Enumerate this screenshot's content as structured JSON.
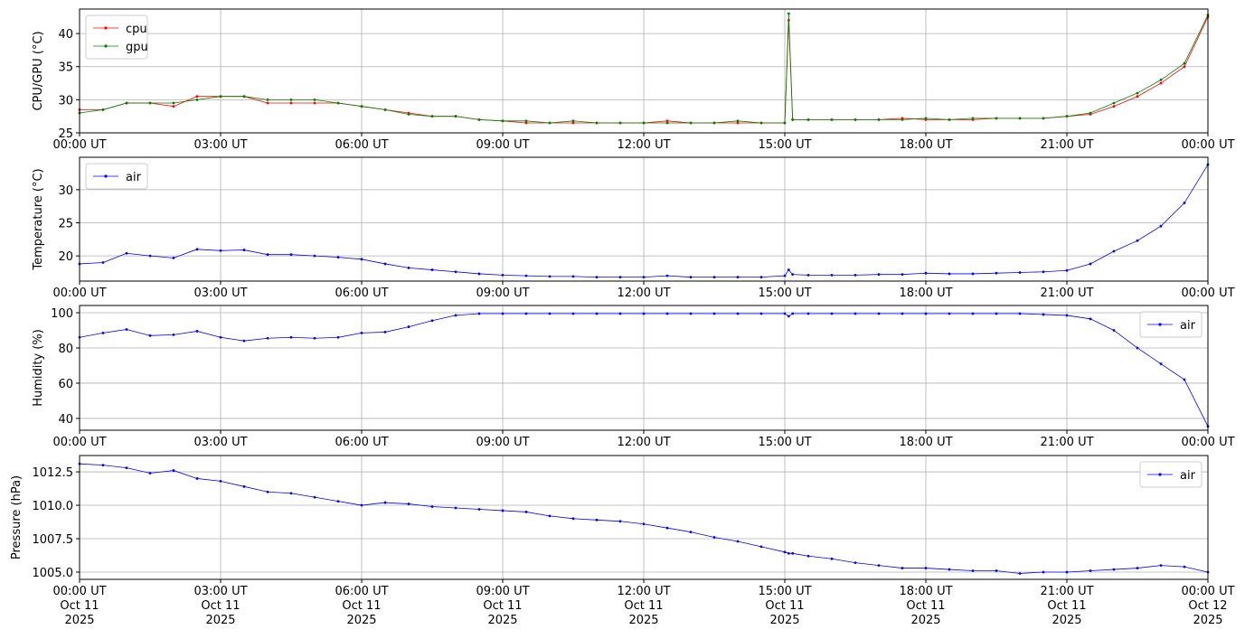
{
  "chart_data": [
    {
      "type": "line",
      "ylabel": "CPU/GPU (°C)",
      "grid": true,
      "legend": "upper left",
      "x": [
        "2025-10-11T00:00",
        "2025-10-11T00:30",
        "2025-10-11T01:00",
        "2025-10-11T01:30",
        "2025-10-11T02:00",
        "2025-10-11T02:30",
        "2025-10-11T03:00",
        "2025-10-11T03:30",
        "2025-10-11T04:00",
        "2025-10-11T04:30",
        "2025-10-11T05:00",
        "2025-10-11T05:30",
        "2025-10-11T06:00",
        "2025-10-11T06:30",
        "2025-10-11T07:00",
        "2025-10-11T07:30",
        "2025-10-11T08:00",
        "2025-10-11T08:30",
        "2025-10-11T09:00",
        "2025-10-11T09:30",
        "2025-10-11T10:00",
        "2025-10-11T10:30",
        "2025-10-11T11:00",
        "2025-10-11T11:30",
        "2025-10-11T12:00",
        "2025-10-11T12:30",
        "2025-10-11T13:00",
        "2025-10-11T13:30",
        "2025-10-11T14:00",
        "2025-10-11T14:30",
        "2025-10-11T15:00",
        "2025-10-11T15:05",
        "2025-10-11T15:10",
        "2025-10-11T15:30",
        "2025-10-11T16:00",
        "2025-10-11T16:30",
        "2025-10-11T17:00",
        "2025-10-11T17:30",
        "2025-10-11T18:00",
        "2025-10-11T18:30",
        "2025-10-11T19:00",
        "2025-10-11T19:30",
        "2025-10-11T20:00",
        "2025-10-11T20:30",
        "2025-10-11T21:00",
        "2025-10-11T21:30",
        "2025-10-11T22:00",
        "2025-10-11T22:30",
        "2025-10-11T23:00",
        "2025-10-11T23:30",
        "2025-10-12T00:00"
      ],
      "series": [
        {
          "name": "cpu",
          "color": "red",
          "values": [
            28.5,
            28.5,
            29.5,
            29.5,
            29,
            30.5,
            30.5,
            30.5,
            29.5,
            29.5,
            29.5,
            29.5,
            29,
            28.5,
            28,
            27.5,
            27.5,
            27,
            26.8,
            26.5,
            26.5,
            26.5,
            26.5,
            26.5,
            26.5,
            26.8,
            26.5,
            26.5,
            26.5,
            26.5,
            26.5,
            42,
            27,
            27,
            27,
            27,
            27,
            27.2,
            27,
            27,
            27,
            27.2,
            27.2,
            27.2,
            27.5,
            27.8,
            29,
            30.5,
            32.5,
            35,
            42.5
          ]
        },
        {
          "name": "gpu",
          "color": "green",
          "values": [
            28,
            28.5,
            29.5,
            29.5,
            29.5,
            30,
            30.5,
            30.5,
            30,
            30,
            30,
            29.5,
            29,
            28.5,
            27.8,
            27.5,
            27.5,
            27,
            26.8,
            26.8,
            26.5,
            26.8,
            26.5,
            26.5,
            26.5,
            26.5,
            26.5,
            26.5,
            26.8,
            26.5,
            26.5,
            43,
            27,
            27,
            27,
            27,
            27,
            27,
            27.2,
            27,
            27.2,
            27.2,
            27.2,
            27.2,
            27.5,
            28,
            29.5,
            31,
            33,
            35.5,
            42.8
          ]
        }
      ],
      "xlim": [
        "2025-10-11T00:00",
        "2025-10-12T00:00"
      ],
      "xticks": [
        {
          "value": "2025-10-11T00:00",
          "label": "00:00 UT"
        },
        {
          "value": "2025-10-11T03:00",
          "label": "03:00 UT"
        },
        {
          "value": "2025-10-11T06:00",
          "label": "06:00 UT"
        },
        {
          "value": "2025-10-11T09:00",
          "label": "09:00 UT"
        },
        {
          "value": "2025-10-11T12:00",
          "label": "12:00 UT"
        },
        {
          "value": "2025-10-11T15:00",
          "label": "15:00 UT"
        },
        {
          "value": "2025-10-11T18:00",
          "label": "18:00 UT"
        },
        {
          "value": "2025-10-11T21:00",
          "label": "21:00 UT"
        },
        {
          "value": "2025-10-12T00:00",
          "label": "00:00 UT"
        }
      ],
      "ylim": [
        25,
        43.7
      ],
      "yticks": [
        25,
        30,
        35,
        40
      ]
    },
    {
      "type": "line",
      "ylabel": "Temperature (°C)",
      "grid": true,
      "legend": "upper left",
      "x": [
        "2025-10-11T00:00",
        "2025-10-11T00:30",
        "2025-10-11T01:00",
        "2025-10-11T01:30",
        "2025-10-11T02:00",
        "2025-10-11T02:30",
        "2025-10-11T03:00",
        "2025-10-11T03:30",
        "2025-10-11T04:00",
        "2025-10-11T04:30",
        "2025-10-11T05:00",
        "2025-10-11T05:30",
        "2025-10-11T06:00",
        "2025-10-11T06:30",
        "2025-10-11T07:00",
        "2025-10-11T07:30",
        "2025-10-11T08:00",
        "2025-10-11T08:30",
        "2025-10-11T09:00",
        "2025-10-11T09:30",
        "2025-10-11T10:00",
        "2025-10-11T10:30",
        "2025-10-11T11:00",
        "2025-10-11T11:30",
        "2025-10-11T12:00",
        "2025-10-11T12:30",
        "2025-10-11T13:00",
        "2025-10-11T13:30",
        "2025-10-11T14:00",
        "2025-10-11T14:30",
        "2025-10-11T15:00",
        "2025-10-11T15:05",
        "2025-10-11T15:10",
        "2025-10-11T15:30",
        "2025-10-11T16:00",
        "2025-10-11T16:30",
        "2025-10-11T17:00",
        "2025-10-11T17:30",
        "2025-10-11T18:00",
        "2025-10-11T18:30",
        "2025-10-11T19:00",
        "2025-10-11T19:30",
        "2025-10-11T20:00",
        "2025-10-11T20:30",
        "2025-10-11T21:00",
        "2025-10-11T21:30",
        "2025-10-11T22:00",
        "2025-10-11T22:30",
        "2025-10-11T23:00",
        "2025-10-11T23:30",
        "2025-10-12T00:00"
      ],
      "series": [
        {
          "name": "air",
          "color": "blue",
          "values": [
            18.8,
            19,
            20.4,
            20,
            19.7,
            21,
            20.8,
            20.9,
            20.2,
            20.2,
            20,
            19.8,
            19.5,
            18.8,
            18.2,
            17.9,
            17.6,
            17.3,
            17.1,
            17,
            16.9,
            16.9,
            16.8,
            16.8,
            16.8,
            17,
            16.8,
            16.8,
            16.8,
            16.8,
            17,
            17.9,
            17.2,
            17.1,
            17.1,
            17.1,
            17.2,
            17.2,
            17.4,
            17.3,
            17.3,
            17.4,
            17.5,
            17.6,
            17.8,
            18.8,
            20.7,
            22.3,
            24.5,
            28,
            33.8
          ]
        }
      ],
      "xlim": [
        "2025-10-11T00:00",
        "2025-10-12T00:00"
      ],
      "xticks": [
        {
          "value": "2025-10-11T00:00",
          "label": "00:00 UT"
        },
        {
          "value": "2025-10-11T03:00",
          "label": "03:00 UT"
        },
        {
          "value": "2025-10-11T06:00",
          "label": "06:00 UT"
        },
        {
          "value": "2025-10-11T09:00",
          "label": "09:00 UT"
        },
        {
          "value": "2025-10-11T12:00",
          "label": "12:00 UT"
        },
        {
          "value": "2025-10-11T15:00",
          "label": "15:00 UT"
        },
        {
          "value": "2025-10-11T18:00",
          "label": "18:00 UT"
        },
        {
          "value": "2025-10-11T21:00",
          "label": "21:00 UT"
        },
        {
          "value": "2025-10-12T00:00",
          "label": "00:00 UT"
        }
      ],
      "ylim": [
        16.2,
        34.9
      ],
      "yticks": [
        20,
        25,
        30
      ]
    },
    {
      "type": "line",
      "ylabel": "Humidity (%)",
      "grid": true,
      "legend": "upper right",
      "x": [
        "2025-10-11T00:00",
        "2025-10-11T00:30",
        "2025-10-11T01:00",
        "2025-10-11T01:30",
        "2025-10-11T02:00",
        "2025-10-11T02:30",
        "2025-10-11T03:00",
        "2025-10-11T03:30",
        "2025-10-11T04:00",
        "2025-10-11T04:30",
        "2025-10-11T05:00",
        "2025-10-11T05:30",
        "2025-10-11T06:00",
        "2025-10-11T06:30",
        "2025-10-11T07:00",
        "2025-10-11T07:30",
        "2025-10-11T08:00",
        "2025-10-11T08:30",
        "2025-10-11T09:00",
        "2025-10-11T09:30",
        "2025-10-11T10:00",
        "2025-10-11T10:30",
        "2025-10-11T11:00",
        "2025-10-11T11:30",
        "2025-10-11T12:00",
        "2025-10-11T12:30",
        "2025-10-11T13:00",
        "2025-10-11T13:30",
        "2025-10-11T14:00",
        "2025-10-11T14:30",
        "2025-10-11T15:00",
        "2025-10-11T15:05",
        "2025-10-11T15:10",
        "2025-10-11T15:30",
        "2025-10-11T16:00",
        "2025-10-11T16:30",
        "2025-10-11T17:00",
        "2025-10-11T17:30",
        "2025-10-11T18:00",
        "2025-10-11T18:30",
        "2025-10-11T19:00",
        "2025-10-11T19:30",
        "2025-10-11T20:00",
        "2025-10-11T20:30",
        "2025-10-11T21:00",
        "2025-10-11T21:30",
        "2025-10-11T22:00",
        "2025-10-11T22:30",
        "2025-10-11T23:00",
        "2025-10-11T23:30",
        "2025-10-12T00:00"
      ],
      "series": [
        {
          "name": "air",
          "color": "blue",
          "values": [
            86,
            88.5,
            90.5,
            87,
            87.5,
            89.5,
            86,
            84,
            85.5,
            86,
            85.5,
            86,
            88.5,
            89,
            92,
            95.5,
            98.5,
            99.5,
            99.5,
            99.5,
            99.5,
            99.5,
            99.5,
            99.5,
            99.5,
            99.5,
            99.5,
            99.5,
            99.5,
            99.5,
            99.5,
            98,
            99.5,
            99.5,
            99.5,
            99.5,
            99.5,
            99.5,
            99.5,
            99.5,
            99.5,
            99.5,
            99.5,
            99,
            98.5,
            96.5,
            90,
            80,
            71,
            62,
            35.5
          ]
        }
      ],
      "xlim": [
        "2025-10-11T00:00",
        "2025-10-12T00:00"
      ],
      "xticks": [
        {
          "value": "2025-10-11T00:00",
          "label": "00:00 UT"
        },
        {
          "value": "2025-10-11T03:00",
          "label": "03:00 UT"
        },
        {
          "value": "2025-10-11T06:00",
          "label": "06:00 UT"
        },
        {
          "value": "2025-10-11T09:00",
          "label": "09:00 UT"
        },
        {
          "value": "2025-10-11T12:00",
          "label": "12:00 UT"
        },
        {
          "value": "2025-10-11T15:00",
          "label": "15:00 UT"
        },
        {
          "value": "2025-10-11T18:00",
          "label": "18:00 UT"
        },
        {
          "value": "2025-10-11T21:00",
          "label": "21:00 UT"
        },
        {
          "value": "2025-10-12T00:00",
          "label": "00:00 UT"
        }
      ],
      "ylim": [
        33.3,
        104.1
      ],
      "yticks": [
        40,
        60,
        80,
        100
      ]
    },
    {
      "type": "line",
      "ylabel": "Pressure (hPa)",
      "grid": true,
      "legend": "upper right",
      "x": [
        "2025-10-11T00:00",
        "2025-10-11T00:30",
        "2025-10-11T01:00",
        "2025-10-11T01:30",
        "2025-10-11T02:00",
        "2025-10-11T02:30",
        "2025-10-11T03:00",
        "2025-10-11T03:30",
        "2025-10-11T04:00",
        "2025-10-11T04:30",
        "2025-10-11T05:00",
        "2025-10-11T05:30",
        "2025-10-11T06:00",
        "2025-10-11T06:30",
        "2025-10-11T07:00",
        "2025-10-11T07:30",
        "2025-10-11T08:00",
        "2025-10-11T08:30",
        "2025-10-11T09:00",
        "2025-10-11T09:30",
        "2025-10-11T10:00",
        "2025-10-11T10:30",
        "2025-10-11T11:00",
        "2025-10-11T11:30",
        "2025-10-11T12:00",
        "2025-10-11T12:30",
        "2025-10-11T13:00",
        "2025-10-11T13:30",
        "2025-10-11T14:00",
        "2025-10-11T14:30",
        "2025-10-11T15:00",
        "2025-10-11T15:05",
        "2025-10-11T15:10",
        "2025-10-11T15:30",
        "2025-10-11T16:00",
        "2025-10-11T16:30",
        "2025-10-11T17:00",
        "2025-10-11T17:30",
        "2025-10-11T18:00",
        "2025-10-11T18:30",
        "2025-10-11T19:00",
        "2025-10-11T19:30",
        "2025-10-11T20:00",
        "2025-10-11T20:30",
        "2025-10-11T21:00",
        "2025-10-11T21:30",
        "2025-10-11T22:00",
        "2025-10-11T22:30",
        "2025-10-11T23:00",
        "2025-10-11T23:30",
        "2025-10-12T00:00"
      ],
      "series": [
        {
          "name": "air",
          "color": "blue",
          "values": [
            1013.1,
            1013,
            1012.8,
            1012.4,
            1012.6,
            1012,
            1011.8,
            1011.4,
            1011,
            1010.9,
            1010.6,
            1010.3,
            1010,
            1010.2,
            1010.1,
            1009.9,
            1009.8,
            1009.7,
            1009.6,
            1009.5,
            1009.2,
            1009,
            1008.9,
            1008.8,
            1008.6,
            1008.3,
            1008,
            1007.6,
            1007.3,
            1006.9,
            1006.5,
            1006.4,
            1006.4,
            1006.2,
            1006,
            1005.7,
            1005.5,
            1005.3,
            1005.3,
            1005.2,
            1005.1,
            1005.1,
            1004.9,
            1005,
            1005,
            1005.1,
            1005.2,
            1005.3,
            1005.5,
            1005.4,
            1005
          ]
        }
      ],
      "xlim": [
        "2025-10-11T00:00",
        "2025-10-12T00:00"
      ],
      "xticks": [
        {
          "value": "2025-10-11T00:00",
          "label": "00:00 UT\nOct 11\n2025"
        },
        {
          "value": "2025-10-11T03:00",
          "label": "03:00 UT\nOct 11\n2025"
        },
        {
          "value": "2025-10-11T06:00",
          "label": "06:00 UT\nOct 11\n2025"
        },
        {
          "value": "2025-10-11T09:00",
          "label": "09:00 UT\nOct 11\n2025"
        },
        {
          "value": "2025-10-11T12:00",
          "label": "12:00 UT\nOct 11\n2025"
        },
        {
          "value": "2025-10-11T15:00",
          "label": "15:00 UT\nOct 11\n2025"
        },
        {
          "value": "2025-10-11T18:00",
          "label": "18:00 UT\nOct 11\n2025"
        },
        {
          "value": "2025-10-11T21:00",
          "label": "21:00 UT\nOct 11\n2025"
        },
        {
          "value": "2025-10-12T00:00",
          "label": "00:00 UT\nOct 12\n2025"
        }
      ],
      "ylim": [
        1004.46,
        1013.72
      ],
      "yticks": [
        {
          "value": 1005,
          "label": "1005.0"
        },
        {
          "value": 1007.5,
          "label": "1007.5"
        },
        {
          "value": 1010,
          "label": "1010.0"
        },
        {
          "value": 1012.5,
          "label": "1012.5"
        }
      ]
    }
  ]
}
